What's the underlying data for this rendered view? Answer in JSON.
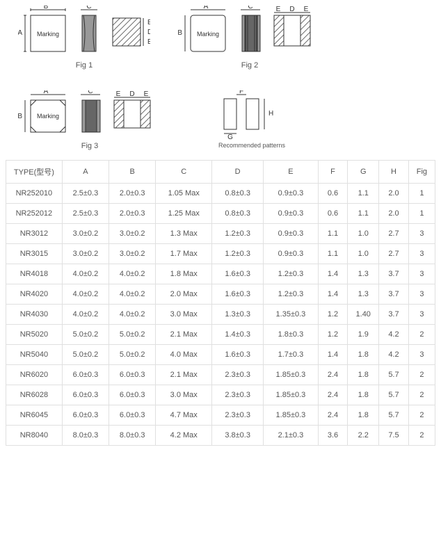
{
  "figures": {
    "fig1": {
      "label": "Fig 1",
      "marking": "Marking",
      "dims": {
        "A": "A",
        "B": "B",
        "C": "C",
        "D": "D",
        "E": "E"
      }
    },
    "fig2": {
      "label": "Fig 2",
      "marking": "Marking",
      "dims": {
        "A": "A",
        "B": "B",
        "C": "C",
        "D": "D",
        "E": "E"
      }
    },
    "fig3": {
      "label": "Fig 3",
      "marking": "Marking",
      "dims": {
        "A": "A",
        "B": "B",
        "C": "C",
        "D": "D",
        "E": "E"
      }
    },
    "pattern": {
      "label": "Recommended patterns",
      "dims": {
        "F": "F",
        "G": "G",
        "H": "H"
      }
    }
  },
  "table": {
    "headers": {
      "type": "TYPE(型号)",
      "A": "A",
      "B": "B",
      "C": "C",
      "D": "D",
      "E": "E",
      "F": "F",
      "G": "G",
      "H": "H",
      "Fig": "Fig"
    },
    "rows": [
      {
        "type": "NR252010",
        "A": "2.5±0.3",
        "B": "2.0±0.3",
        "C": "1.05 Max",
        "D": "0.8±0.3",
        "E": "0.9±0.3",
        "F": "0.6",
        "G": "1.1",
        "H": "2.0",
        "Fig": "1"
      },
      {
        "type": "NR252012",
        "A": "2.5±0.3",
        "B": "2.0±0.3",
        "C": "1.25 Max",
        "D": "0.8±0.3",
        "E": "0.9±0.3",
        "F": "0.6",
        "G": "1.1",
        "H": "2.0",
        "Fig": "1"
      },
      {
        "type": "NR3012",
        "A": "3.0±0.2",
        "B": "3.0±0.2",
        "C": "1.3 Max",
        "D": "1.2±0.3",
        "E": "0.9±0.3",
        "F": "1.1",
        "G": "1.0",
        "H": "2.7",
        "Fig": "3"
      },
      {
        "type": "NR3015",
        "A": "3.0±0.2",
        "B": "3.0±0.2",
        "C": "1.7 Max",
        "D": "1.2±0.3",
        "E": "0.9±0.3",
        "F": "1.1",
        "G": "1.0",
        "H": "2.7",
        "Fig": "3"
      },
      {
        "type": "NR4018",
        "A": "4.0±0.2",
        "B": "4.0±0.2",
        "C": "1.8 Max",
        "D": "1.6±0.3",
        "E": "1.2±0.3",
        "F": "1.4",
        "G": "1.3",
        "H": "3.7",
        "Fig": "3"
      },
      {
        "type": "NR4020",
        "A": "4.0±0.2",
        "B": "4.0±0.2",
        "C": "2.0 Max",
        "D": "1.6±0.3",
        "E": "1.2±0.3",
        "F": "1.4",
        "G": "1.3",
        "H": "3.7",
        "Fig": "3"
      },
      {
        "type": "NR4030",
        "A": "4.0±0.2",
        "B": "4.0±0.2",
        "C": "3.0 Max",
        "D": "1.3±0.3",
        "E": "1.35±0.3",
        "F": "1.2",
        "G": "1.40",
        "H": "3.7",
        "Fig": "3"
      },
      {
        "type": "NR5020",
        "A": "5.0±0.2",
        "B": "5.0±0.2",
        "C": "2.1 Max",
        "D": "1.4±0.3",
        "E": "1.8±0.3",
        "F": "1.2",
        "G": "1.9",
        "H": "4.2",
        "Fig": "2"
      },
      {
        "type": "NR5040",
        "A": "5.0±0.2",
        "B": "5.0±0.2",
        "C": "4.0 Max",
        "D": "1.6±0.3",
        "E": "1.7±0.3",
        "F": "1.4",
        "G": "1.8",
        "H": "4.2",
        "Fig": "3"
      },
      {
        "type": "NR6020",
        "A": "6.0±0.3",
        "B": "6.0±0.3",
        "C": "2.1 Max",
        "D": "2.3±0.3",
        "E": "1.85±0.3",
        "F": "2.4",
        "G": "1.8",
        "H": "5.7",
        "Fig": "2"
      },
      {
        "type": "NR6028",
        "A": "6.0±0.3",
        "B": "6.0±0.3",
        "C": "3.0 Max",
        "D": "2.3±0.3",
        "E": "1.85±0.3",
        "F": "2.4",
        "G": "1.8",
        "H": "5.7",
        "Fig": "2"
      },
      {
        "type": "NR6045",
        "A": "6.0±0.3",
        "B": "6.0±0.3",
        "C": "4.7 Max",
        "D": "2.3±0.3",
        "E": "1.85±0.3",
        "F": "2.4",
        "G": "1.8",
        "H": "5.7",
        "Fig": "2"
      },
      {
        "type": "NR8040",
        "A": "8.0±0.3",
        "B": "8.0±0.3",
        "C": "4.2 Max",
        "D": "3.8±0.3",
        "E": "2.1±0.3",
        "F": "3.6",
        "G": "2.2",
        "H": "7.5",
        "Fig": "2"
      }
    ]
  }
}
